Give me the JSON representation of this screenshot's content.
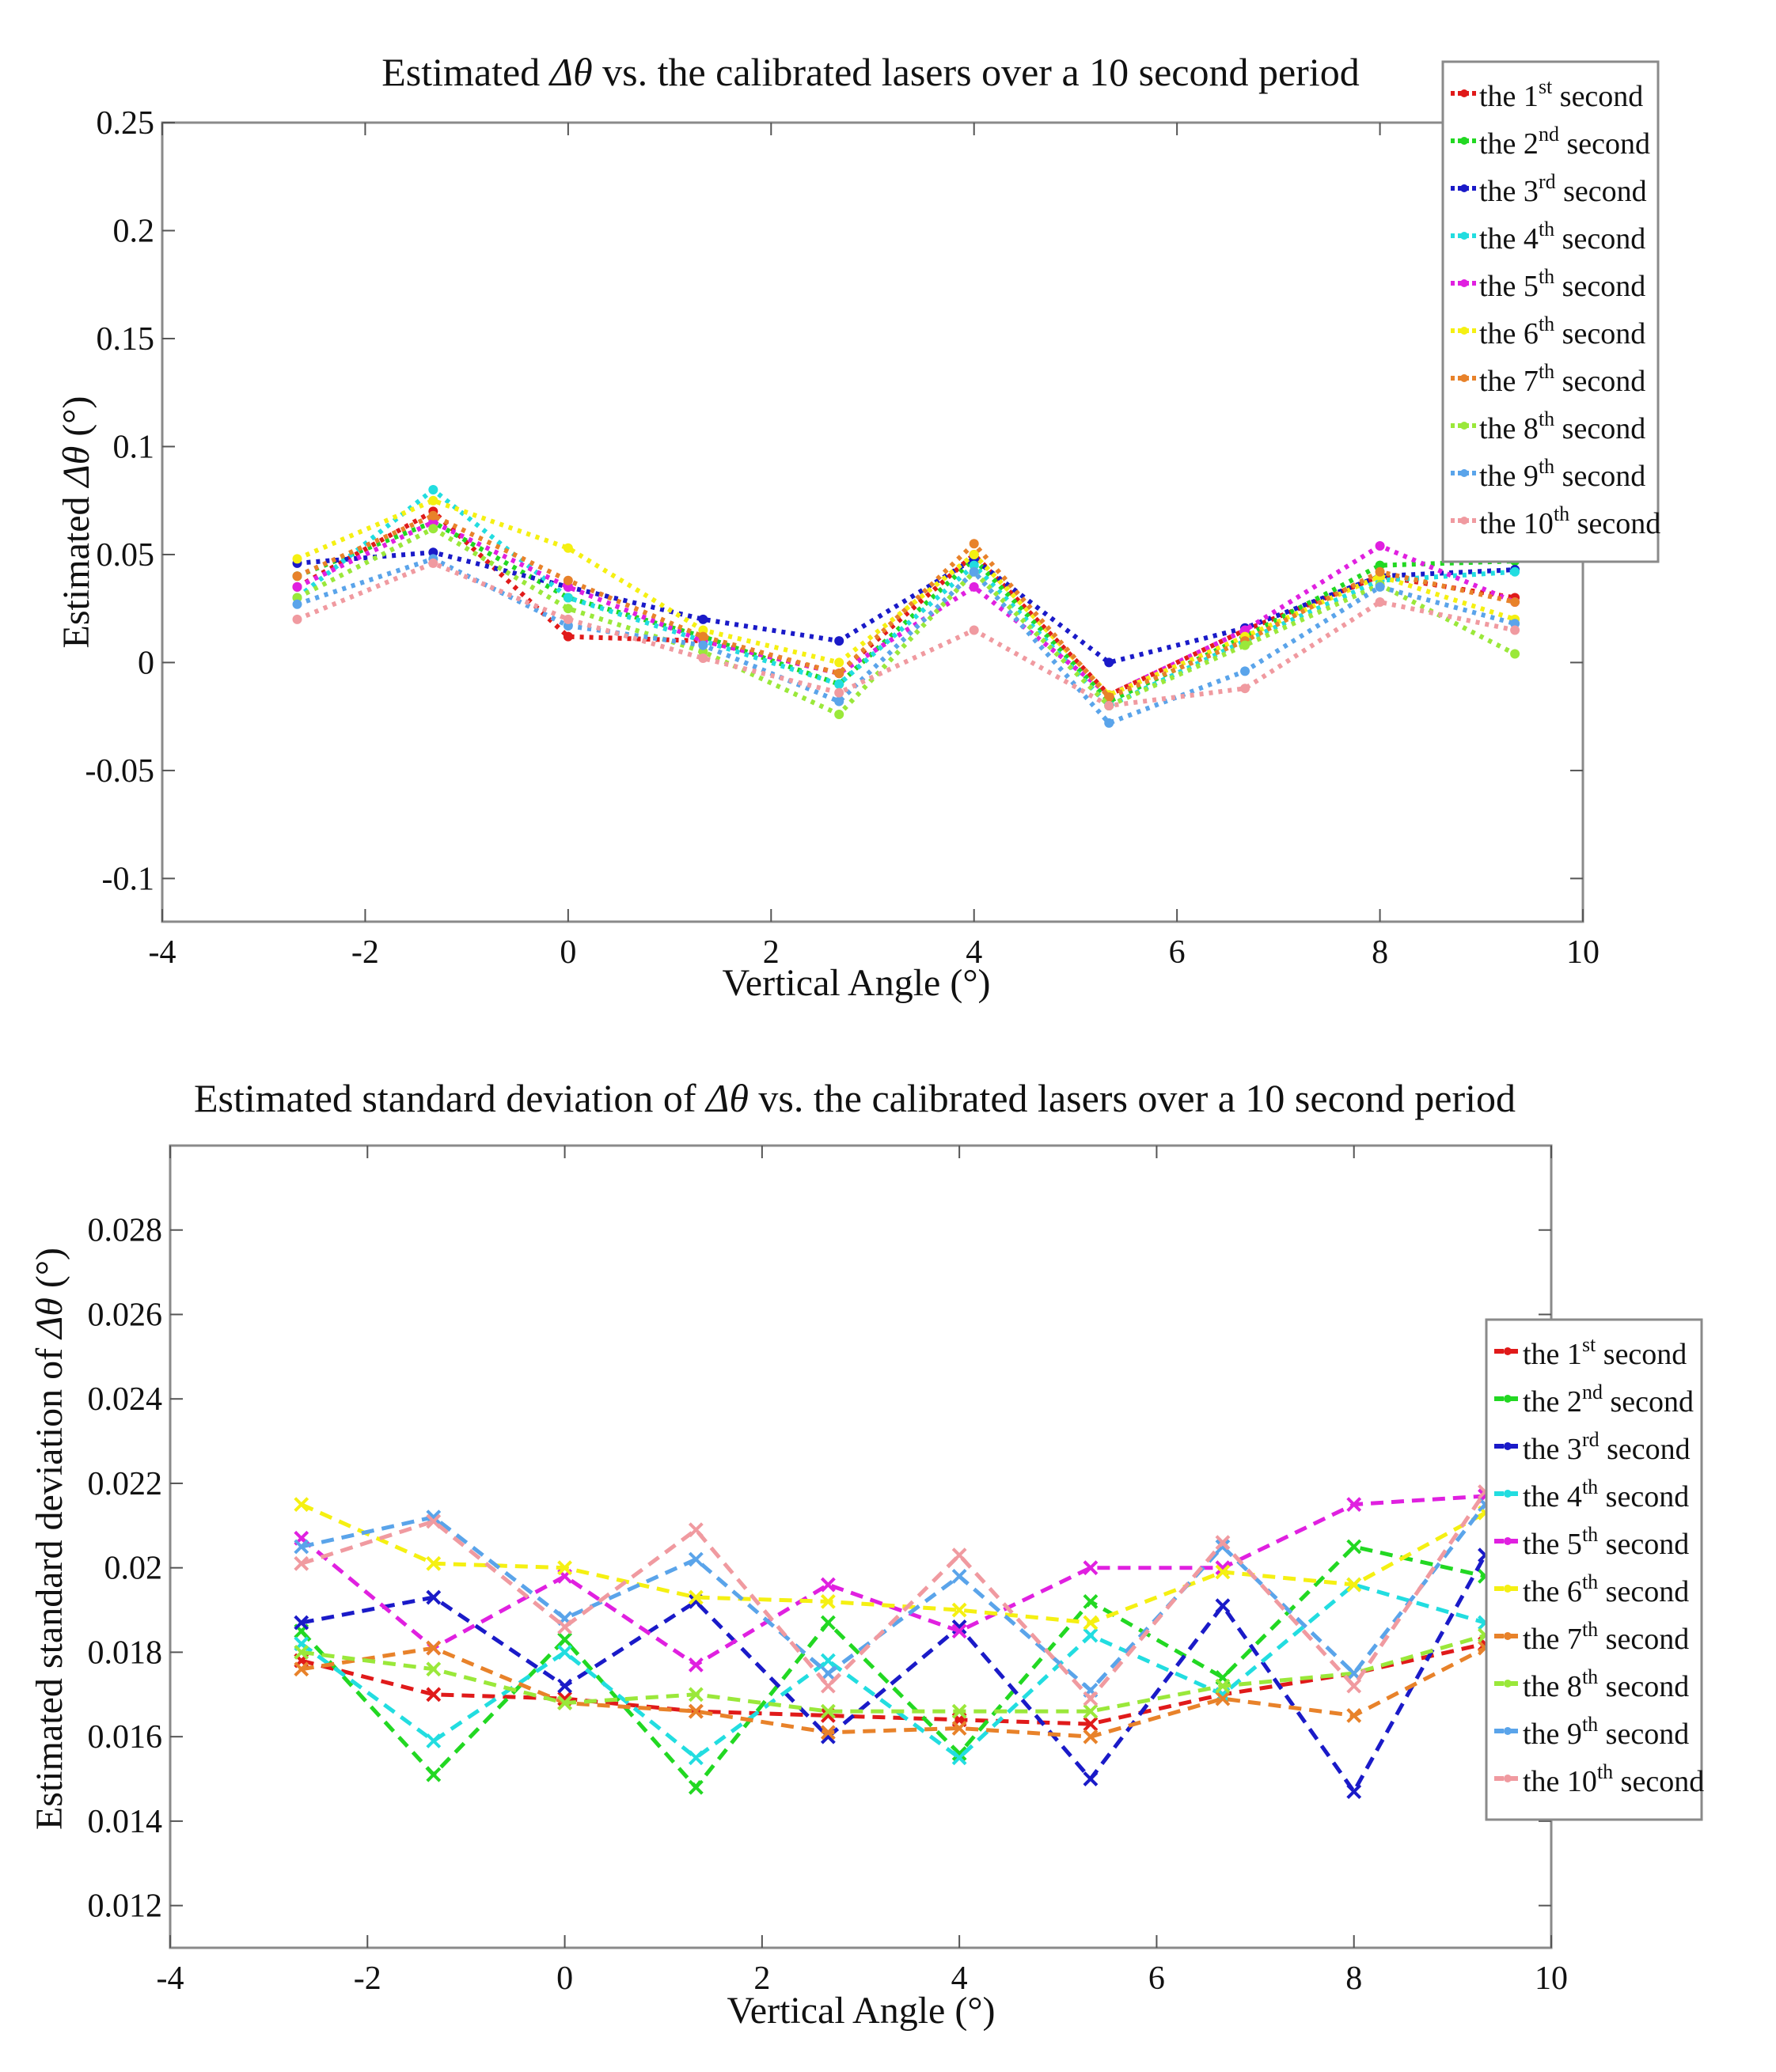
{
  "chart_data": [
    {
      "type": "line",
      "title_pre": "Estimated ",
      "title_symbol": "Δθ",
      "title_post": "  vs. the calibrated lasers over a 10 second period",
      "xlabel": "Vertical Angle (°)",
      "ylabel_pre": "Estimated ",
      "ylabel_symbol": "Δθ",
      "ylabel_post": "  (°)",
      "xlim": [
        -4,
        10
      ],
      "ylim": [
        -0.12,
        0.25
      ],
      "xticks": [
        -4,
        -2,
        0,
        2,
        4,
        6,
        8,
        10
      ],
      "yticks": [
        -0.1,
        -0.05,
        0,
        0.05,
        0.1,
        0.15,
        0.2,
        0.25
      ],
      "ytick_labels": [
        "-0.1",
        "-0.05",
        "0",
        "0.05",
        "0.1",
        "0.15",
        "0.2",
        "0.25"
      ],
      "xtick_labels": [
        "-4",
        "-2",
        "0",
        "2",
        "4",
        "6",
        "8",
        "10"
      ],
      "grid": false,
      "legend_position": "top-right",
      "line_style": "dotted",
      "x": [
        -2.67,
        -1.33,
        0.0,
        1.33,
        2.67,
        4.0,
        5.33,
        6.67,
        8.0,
        9.33
      ],
      "series": [
        {
          "name": "the 1st second",
          "label": "the 1",
          "sup": "st",
          "suffix": " second",
          "color": "#e01a1a",
          "values": [
            0.035,
            0.07,
            0.012,
            0.01,
            -0.005,
            0.05,
            -0.015,
            0.015,
            0.04,
            0.03
          ]
        },
        {
          "name": "the 2nd second",
          "label": "the 2",
          "sup": "nd",
          "suffix": " second",
          "color": "#22d822",
          "values": [
            0.04,
            0.065,
            0.03,
            0.012,
            -0.01,
            0.048,
            -0.018,
            0.012,
            0.045,
            0.047
          ]
        },
        {
          "name": "the 3rd second",
          "label": "the 3",
          "sup": "rd",
          "suffix": " second",
          "color": "#1a1ac8",
          "values": [
            0.046,
            0.051,
            0.035,
            0.02,
            0.01,
            0.048,
            0.0,
            0.016,
            0.04,
            0.043
          ]
        },
        {
          "name": "the 4th second",
          "label": "the 4",
          "sup": "th",
          "suffix": " second",
          "color": "#22dde0",
          "values": [
            0.03,
            0.08,
            0.03,
            0.01,
            -0.01,
            0.045,
            -0.02,
            0.01,
            0.038,
            0.042
          ]
        },
        {
          "name": "the 5th second",
          "label": "the 5",
          "sup": "th",
          "suffix": " second",
          "color": "#e020e0",
          "values": [
            0.035,
            0.065,
            0.035,
            0.01,
            -0.005,
            0.035,
            -0.015,
            0.015,
            0.054,
            0.028
          ]
        },
        {
          "name": "the 6th second",
          "label": "the 6",
          "sup": "th",
          "suffix": " second",
          "color": "#f5f012",
          "values": [
            0.048,
            0.075,
            0.053,
            0.015,
            0.0,
            0.05,
            -0.015,
            0.012,
            0.04,
            0.02
          ]
        },
        {
          "name": "the 7th second",
          "label": "the 7",
          "sup": "th",
          "suffix": " second",
          "color": "#e8822a",
          "values": [
            0.04,
            0.068,
            0.038,
            0.012,
            -0.005,
            0.055,
            -0.016,
            0.01,
            0.042,
            0.028
          ]
        },
        {
          "name": "the 8th second",
          "label": "the 8",
          "sup": "th",
          "suffix": " second",
          "color": "#9ae83a",
          "values": [
            0.03,
            0.062,
            0.025,
            0.005,
            -0.024,
            0.042,
            -0.02,
            0.008,
            0.036,
            0.004
          ]
        },
        {
          "name": "the 9th second",
          "label": "the 9",
          "sup": "th",
          "suffix": " second",
          "color": "#5aa4ea",
          "values": [
            0.027,
            0.048,
            0.017,
            0.008,
            -0.018,
            0.042,
            -0.028,
            -0.004,
            0.035,
            0.018
          ]
        },
        {
          "name": "the 10th second",
          "label": "the 10",
          "sup": "th",
          "suffix": " second",
          "color": "#f09aa0",
          "values": [
            0.02,
            0.046,
            0.02,
            0.002,
            -0.014,
            0.015,
            -0.02,
            -0.012,
            0.028,
            0.015
          ]
        }
      ]
    },
    {
      "type": "line",
      "title_pre": "Estimated standard deviation of ",
      "title_symbol": "Δθ",
      "title_post": "  vs. the calibrated lasers over a 10 second period",
      "xlabel": "Vertical Angle (°)",
      "ylabel_pre": "Estimated standard deviation of ",
      "ylabel_symbol": "Δθ",
      "ylabel_post": "  (°)",
      "xlim": [
        -4,
        10
      ],
      "ylim": [
        0.011,
        0.03
      ],
      "xticks": [
        -4,
        -2,
        0,
        2,
        4,
        6,
        8,
        10
      ],
      "yticks": [
        0.012,
        0.014,
        0.016,
        0.018,
        0.02,
        0.022,
        0.024,
        0.026,
        0.028
      ],
      "ytick_labels": [
        "0.012",
        "0.014",
        "0.016",
        "0.018",
        "0.02",
        "0.022",
        "0.024",
        "0.026",
        "0.028"
      ],
      "xtick_labels": [
        "-4",
        "-2",
        "0",
        "2",
        "4",
        "6",
        "8",
        "10"
      ],
      "grid": false,
      "legend_position": "right",
      "line_style": "dashed",
      "x": [
        -2.67,
        -1.33,
        0.0,
        1.33,
        2.67,
        4.0,
        5.33,
        6.67,
        8.0,
        9.33
      ],
      "series": [
        {
          "name": "the 1st second",
          "label": "the 1",
          "sup": "st",
          "suffix": " second",
          "color": "#e01a1a",
          "values": [
            0.0178,
            0.017,
            0.0169,
            0.0166,
            0.0165,
            0.0164,
            0.0163,
            0.017,
            0.0175,
            0.0182
          ]
        },
        {
          "name": "the 2nd second",
          "label": "the 2",
          "sup": "nd",
          "suffix": " second",
          "color": "#22d822",
          "values": [
            0.0185,
            0.0151,
            0.0183,
            0.0148,
            0.0187,
            0.0156,
            0.0192,
            0.0174,
            0.0205,
            0.0198
          ]
        },
        {
          "name": "the 3rd second",
          "label": "the 3",
          "sup": "rd",
          "suffix": " second",
          "color": "#1a1ac8",
          "values": [
            0.0187,
            0.0193,
            0.0172,
            0.0192,
            0.016,
            0.0186,
            0.015,
            0.0191,
            0.0147,
            0.0203
          ]
        },
        {
          "name": "the 4th second",
          "label": "the 4",
          "sup": "th",
          "suffix": " second",
          "color": "#22dde0",
          "values": [
            0.0182,
            0.0159,
            0.018,
            0.0155,
            0.0178,
            0.0155,
            0.0184,
            0.017,
            0.0196,
            0.0187
          ]
        },
        {
          "name": "the 5th second",
          "label": "the 5",
          "sup": "th",
          "suffix": " second",
          "color": "#e020e0",
          "values": [
            0.0207,
            0.0181,
            0.0198,
            0.0177,
            0.0196,
            0.0185,
            0.02,
            0.02,
            0.0215,
            0.0217
          ]
        },
        {
          "name": "the 6th second",
          "label": "the 6",
          "sup": "th",
          "suffix": " second",
          "color": "#f5f012",
          "values": [
            0.0215,
            0.0201,
            0.02,
            0.0193,
            0.0192,
            0.019,
            0.0187,
            0.0199,
            0.0196,
            0.0213
          ]
        },
        {
          "name": "the 7th second",
          "label": "the 7",
          "sup": "th",
          "suffix": " second",
          "color": "#e8822a",
          "values": [
            0.0176,
            0.0181,
            0.0168,
            0.0166,
            0.0161,
            0.0162,
            0.016,
            0.0169,
            0.0165,
            0.0181
          ]
        },
        {
          "name": "the 8th second",
          "label": "the 8",
          "sup": "th",
          "suffix": " second",
          "color": "#9ae83a",
          "values": [
            0.018,
            0.0176,
            0.0168,
            0.017,
            0.0166,
            0.0166,
            0.0166,
            0.0172,
            0.0175,
            0.0184
          ]
        },
        {
          "name": "the 9th second",
          "label": "the 9",
          "sup": "th",
          "suffix": " second",
          "color": "#5aa4ea",
          "values": [
            0.0205,
            0.0212,
            0.0188,
            0.0202,
            0.0175,
            0.0198,
            0.0171,
            0.0205,
            0.0175,
            0.0215
          ]
        },
        {
          "name": "the 10th second",
          "label": "the 10",
          "sup": "th",
          "suffix": " second",
          "color": "#f09aa0",
          "values": [
            0.0201,
            0.0211,
            0.0186,
            0.0209,
            0.0172,
            0.0203,
            0.0169,
            0.0206,
            0.0172,
            0.0218
          ]
        }
      ]
    }
  ]
}
